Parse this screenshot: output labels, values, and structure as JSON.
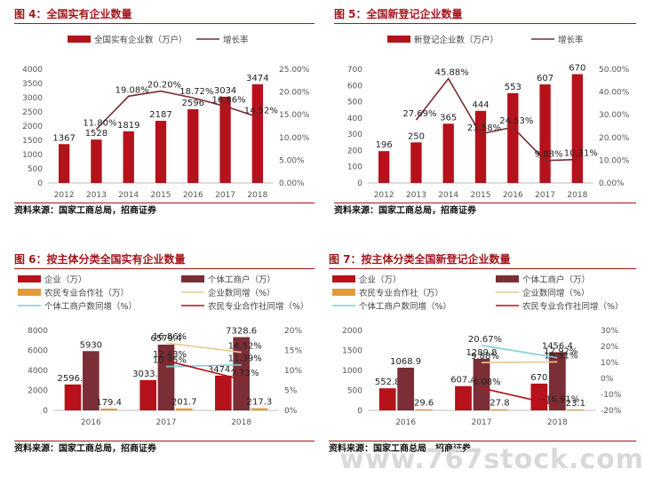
{
  "panels": [
    {
      "title": "图 4：全国实有企业数量",
      "source": "资料来源：国家工商总局，招商证券",
      "legend": [
        "全国实有企业数（万户）",
        "增长率"
      ]
    },
    {
      "title": "图 5：全国新登记企业数量",
      "source": "资料来源：国家工商总局，招商证券",
      "legend": [
        "新登记企业数（万户）",
        "增长率"
      ]
    },
    {
      "title": "图 6：按主体分类全国实有企业数量",
      "source": "资料来源：国家工商总局，招商证券",
      "legend": [
        "企业（万）",
        "个体工商户（万）",
        "农民专业合作社（万）",
        "企业数同增（%）",
        "个体工商户数同增（%）",
        "农民专业合作社同增（%）"
      ]
    },
    {
      "title": "图 7：按主体分类全国新登记企业数量",
      "source": "资料来源：国家工商总局，招商证券",
      "legend": [
        "企业（万）",
        "个体工商户（万）",
        "农民专业合作社（万）",
        "企业数同增（%）",
        "个体工商户数同增（%）",
        "农民专业合作社同增（%）"
      ]
    }
  ],
  "watermark": "www.767stock.com",
  "chart_data": [
    {
      "type": "bar",
      "categories": [
        "2012",
        "2013",
        "2014",
        "2015",
        "2016",
        "2017",
        "2018"
      ],
      "series": [
        {
          "name": "全国实有企业数（万户）",
          "kind": "bar",
          "axis": "left",
          "values": [
            1367,
            1528,
            1819,
            2187,
            2596,
            3034,
            3474
          ],
          "labels": [
            "1367",
            "1528",
            "1819",
            "2187",
            "2596",
            "3034",
            "3474"
          ]
        },
        {
          "name": "增长率",
          "kind": "line",
          "axis": "right",
          "values": [
            null,
            11.8,
            19.08,
            20.2,
            18.72,
            16.86,
            14.52
          ],
          "labels": [
            "",
            "11.80%",
            "19.08%",
            "20.20%",
            "18.72%",
            "16.86%",
            "14.52%"
          ]
        }
      ],
      "ylim": [
        0,
        4000
      ],
      "y2lim": [
        0,
        25
      ],
      "yticks": [
        "0",
        "500",
        "1000",
        "1500",
        "2000",
        "2500",
        "3000",
        "3500",
        "4000"
      ],
      "y2ticks": [
        "0.00%",
        "5.00%",
        "10.00%",
        "15.00%",
        "20.00%",
        "25.00%"
      ],
      "grid": false,
      "legend_position": "top",
      "colors": {
        "bar": "#b5121b",
        "line": "#7a2a33"
      }
    },
    {
      "type": "bar",
      "categories": [
        "2012",
        "2013",
        "2014",
        "2015",
        "2016",
        "2017",
        "2018"
      ],
      "series": [
        {
          "name": "新登记企业数（万户）",
          "kind": "bar",
          "axis": "left",
          "values": [
            196,
            250,
            365,
            444,
            553,
            607,
            670
          ],
          "labels": [
            "196",
            "250",
            "365",
            "444",
            "553",
            "607",
            "670"
          ]
        },
        {
          "name": "增长率",
          "kind": "line",
          "axis": "right",
          "values": [
            null,
            27.69,
            45.88,
            21.58,
            24.53,
            9.88,
            10.31
          ],
          "labels": [
            "",
            "27.69%",
            "45.88%",
            "21.58%",
            "24.53%",
            "9.88%",
            "10.31%"
          ]
        }
      ],
      "ylim": [
        0,
        700
      ],
      "y2lim": [
        0,
        50
      ],
      "yticks": [
        "0",
        "100",
        "200",
        "300",
        "400",
        "500",
        "600",
        "700"
      ],
      "y2ticks": [
        "0.00%",
        "10.00%",
        "20.00%",
        "30.00%",
        "40.00%",
        "50.00%"
      ],
      "grid": false,
      "legend_position": "top",
      "colors": {
        "bar": "#b5121b",
        "line": "#7a2a33"
      }
    },
    {
      "type": "bar",
      "categories": [
        "2016",
        "2017",
        "2018"
      ],
      "series": [
        {
          "name": "企业（万）",
          "kind": "bar",
          "axis": "left",
          "values": [
            2596.1,
            3033.7,
            3474.2
          ],
          "labels": [
            "2596.1",
            "3033.7",
            "3474.2"
          ]
        },
        {
          "name": "个体工商户（万）",
          "kind": "bar",
          "axis": "left",
          "values": [
            5930,
            6579.4,
            7328.6
          ],
          "labels": [
            "5930",
            "6579.4",
            "7328.6"
          ]
        },
        {
          "name": "农民专业合作社（万）",
          "kind": "bar",
          "axis": "left",
          "values": [
            179.4,
            201.7,
            217.3
          ],
          "labels": [
            "179.4",
            "201.7",
            "217.3"
          ]
        },
        {
          "name": "企业数同增（%）",
          "kind": "line",
          "axis": "right",
          "values": [
            null,
            16.86,
            14.52
          ],
          "labels": [
            "",
            "16.86%",
            "14.52%"
          ]
        },
        {
          "name": "个体工商户数同增（%）",
          "kind": "line",
          "axis": "right",
          "values": [
            null,
            10.95,
            11.39
          ],
          "labels": [
            "",
            "10.95%",
            "11.39%"
          ]
        },
        {
          "name": "农民专业合作社同增（%）",
          "kind": "line",
          "axis": "right",
          "values": [
            null,
            12.43,
            7.73
          ],
          "labels": [
            "",
            "12.43%",
            "7.73%"
          ]
        }
      ],
      "ylim": [
        0,
        8000
      ],
      "y2lim": [
        0,
        20
      ],
      "yticks": [
        "0",
        "2000",
        "4000",
        "6000",
        "8000"
      ],
      "y2ticks": [
        "0%",
        "5%",
        "10%",
        "15%",
        "20%"
      ],
      "grid": false,
      "legend_position": "top",
      "colors": {
        "bar1": "#b5121b",
        "bar2": "#7b2e35",
        "bar3": "#e39a3c",
        "line1": "#e8c88a",
        "line2": "#7ecfd0",
        "line3": "#b5121b"
      }
    },
    {
      "type": "bar",
      "categories": [
        "2016",
        "2017",
        "2018"
      ],
      "series": [
        {
          "name": "企业（万）",
          "kind": "bar",
          "axis": "left",
          "values": [
            552.8,
            607.4,
            670
          ],
          "labels": [
            "552.8",
            "607.4",
            "670"
          ]
        },
        {
          "name": "个体工商户（万）",
          "kind": "bar",
          "axis": "left",
          "values": [
            1068.9,
            1289.8,
            1456.4
          ],
          "labels": [
            "1068.9",
            "1289.8",
            "1456.4"
          ]
        },
        {
          "name": "农民专业合作社（万）",
          "kind": "bar",
          "axis": "left",
          "values": [
            29.6,
            27.8,
            23.1
          ],
          "labels": [
            "29.6",
            "27.8",
            "23.1"
          ]
        },
        {
          "name": "企业数同增（%）",
          "kind": "line",
          "axis": "right",
          "values": [
            null,
            9.88,
            10.31
          ],
          "labels": [
            "",
            "9.88%",
            "10.31%"
          ]
        },
        {
          "name": "个体工商户数同增（%）",
          "kind": "line",
          "axis": "right",
          "values": [
            null,
            20.67,
            12.92
          ],
          "labels": [
            "",
            "20.67%",
            "12.92%"
          ]
        },
        {
          "name": "农民专业合作社同增（%）",
          "kind": "line",
          "axis": "right",
          "values": [
            null,
            -6.08,
            -16.91
          ],
          "labels": [
            "",
            "-6.08%",
            "-16.91%"
          ]
        }
      ],
      "ylim": [
        0,
        2000
      ],
      "y2lim": [
        -20,
        30
      ],
      "yticks": [
        "0",
        "500",
        "1000",
        "1500",
        "2000"
      ],
      "y2ticks": [
        "-20%",
        "-10%",
        "0%",
        "10%",
        "20%",
        "30%"
      ],
      "grid": false,
      "legend_position": "top",
      "colors": {
        "bar1": "#b5121b",
        "bar2": "#7b2e35",
        "bar3": "#e39a3c",
        "line1": "#e8c88a",
        "line2": "#7ecfd0",
        "line3": "#b5121b"
      }
    }
  ]
}
